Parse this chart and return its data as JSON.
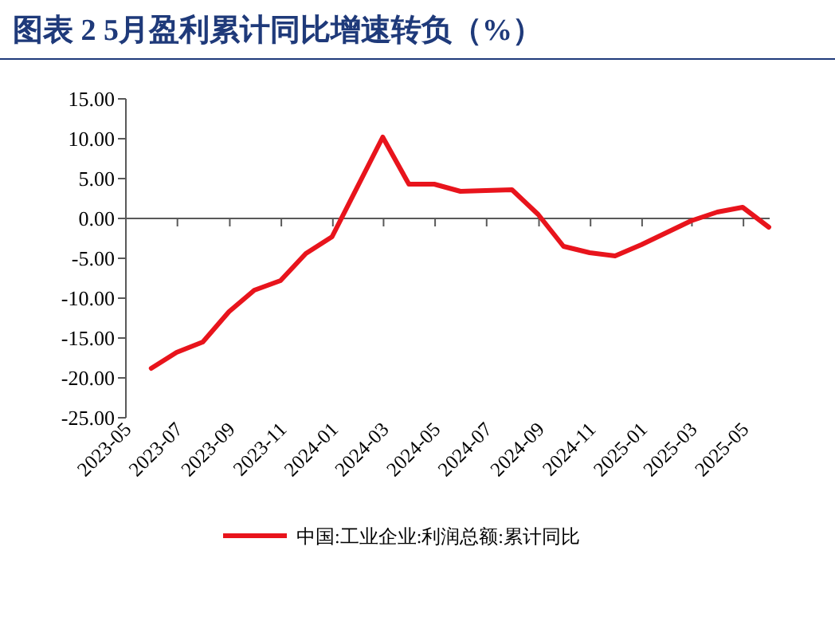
{
  "chart_data": {
    "type": "line",
    "title": "图表 2   5月盈利累计同比增速转负（%）",
    "x": [
      "2023-05-31",
      "2023-06-30",
      "2023-07-31",
      "2023-08-31",
      "2023-09-30",
      "2023-10-31",
      "2023-11-30",
      "2023-12-31",
      "2024-02-29",
      "2024-03-31",
      "2024-04-30",
      "2024-05-31",
      "2024-06-30",
      "2024-07-31",
      "2024-08-31",
      "2024-09-30",
      "2024-10-31",
      "2024-11-30",
      "2024-12-31",
      "2025-02-28",
      "2025-03-31",
      "2025-04-30",
      "2025-05-31"
    ],
    "series": [
      {
        "name": "中国:工业企业:利润总额:累计同比",
        "color": "#e8141c",
        "values": [
          -18.8,
          -16.8,
          -15.5,
          -11.7,
          -9.0,
          -7.8,
          -4.4,
          -2.3,
          10.2,
          4.3,
          4.3,
          3.4,
          3.5,
          3.6,
          0.5,
          -3.5,
          -4.3,
          -4.7,
          -3.3,
          -0.3,
          0.8,
          1.4,
          -1.1
        ]
      }
    ],
    "xlim": [
      "2023-05-01",
      "2025-06-01"
    ],
    "xticks": [
      "2023-05",
      "2023-07",
      "2023-09",
      "2023-11",
      "2024-01",
      "2024-03",
      "2024-05",
      "2024-07",
      "2024-09",
      "2024-11",
      "2025-01",
      "2025-03",
      "2025-05"
    ],
    "ylim": [
      -25,
      15
    ],
    "yticks": [
      {
        "value": 15,
        "label": "15.00"
      },
      {
        "value": 10,
        "label": "10.00"
      },
      {
        "value": 5,
        "label": "5.00"
      },
      {
        "value": 0,
        "label": "0.00"
      },
      {
        "value": -5,
        "label": "-5.00"
      },
      {
        "value": -10,
        "label": "-10.00"
      },
      {
        "value": -15,
        "label": "-15.00"
      },
      {
        "value": -20,
        "label": "-20.00"
      },
      {
        "value": -25,
        "label": "-25.00"
      }
    ],
    "legend": "bottom",
    "marker": "none",
    "line_style": "solid"
  }
}
